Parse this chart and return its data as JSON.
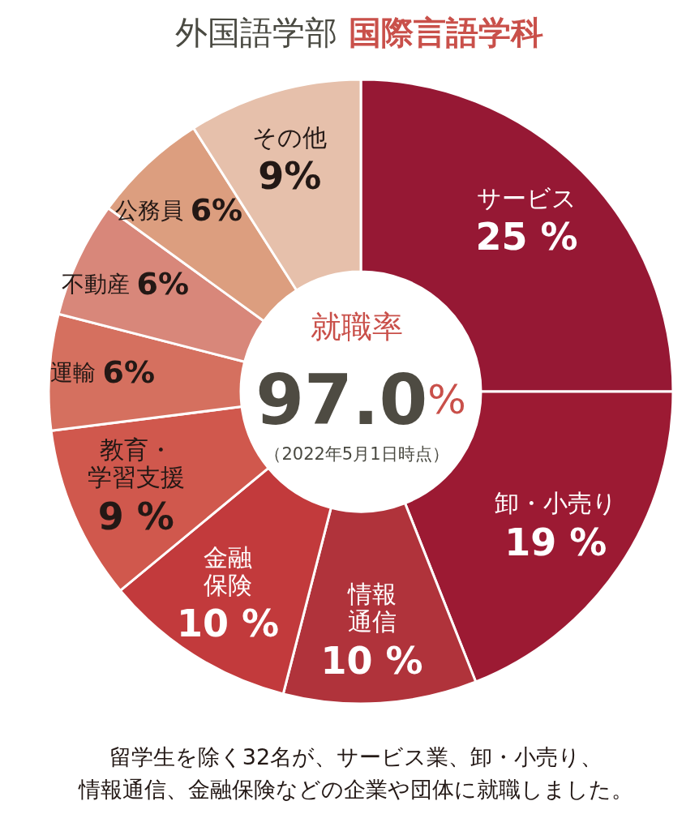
{
  "chart_data": {
    "type": "donut",
    "title": "外国語学部",
    "subtitle": "国際言語学科",
    "categories": [
      "サービス",
      "卸・小売り",
      "情報通信",
      "金融保険",
      "教育・学習支援",
      "運輸",
      "不動産",
      "公務員",
      "その他"
    ],
    "values": [
      25,
      19,
      10,
      10,
      9,
      6,
      6,
      6,
      9
    ],
    "value_labels": [
      "25 %",
      "19 %",
      "10 %",
      "10 %",
      "9 %",
      "6%",
      "6%",
      "6%",
      "9%"
    ],
    "colors": [
      "#961834",
      "#9c1a33",
      "#b0333b",
      "#c23a3c",
      "#d0584d",
      "#d5705f",
      "#d8877a",
      "#dc9e7f",
      "#e6c0ab"
    ],
    "annotations": [
      "就職率",
      "97.0%",
      "（2022年5月1日時点）",
      "留学生を除く32名が、サービス業、卸・小売り、",
      "情報通信、金融保険などの企業や団体に就職しました。"
    ]
  }
}
